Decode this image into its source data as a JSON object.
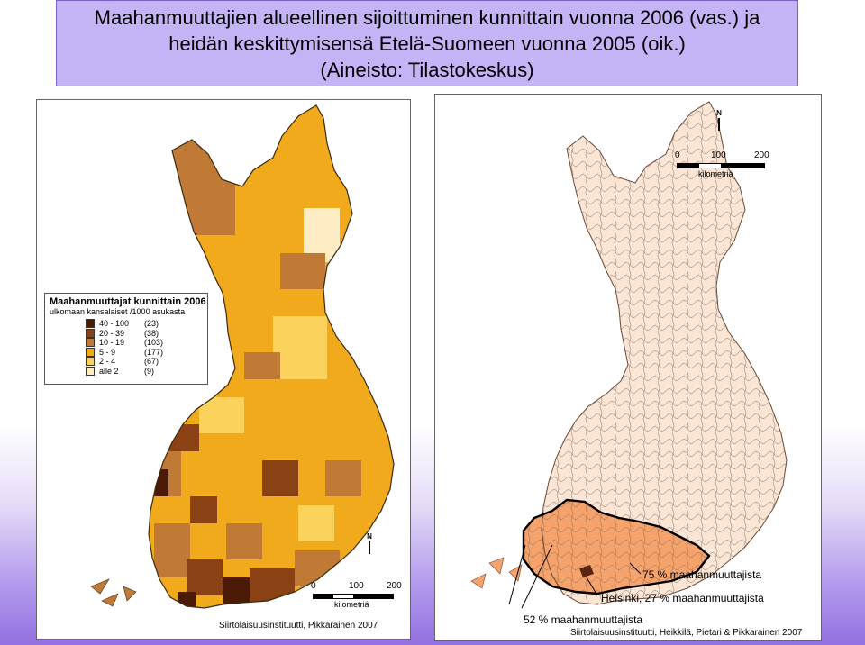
{
  "header": {
    "line1": "Maahanmuuttajien alueellinen sijoittuminen kunnittain vuonna 2006 (vas.) ja",
    "line2": "heidän keskittymisensä Etelä-Suomeen vuonna 2005 (oik.)",
    "line3": "(Aineisto: Tilastokeskus)"
  },
  "left_map": {
    "legend_title": "Maahanmuuttajat kunnittain 2006",
    "legend_subtitle": "ulkomaan kansalaiset /1000 asukasta",
    "classes": [
      {
        "range": "40 - 100",
        "count": "(23)",
        "color": "#4a1a06"
      },
      {
        "range": "20 - 39",
        "count": "(38)",
        "color": "#8a4214"
      },
      {
        "range": "10 - 19",
        "count": "(103)",
        "color": "#c07a36"
      },
      {
        "range": "5 - 9",
        "count": "(177)",
        "color": "#f0aa1c"
      },
      {
        "range": "2 - 4",
        "count": "(67)",
        "color": "#fbd35c"
      },
      {
        "range": "alle 2",
        "count": "(9)",
        "color": "#fdecc4"
      }
    ],
    "scale": {
      "t0": "0",
      "t1": "100",
      "t2": "200",
      "unit": "kilometriä"
    },
    "north": "N",
    "credit": "Siirtolaisuusinstituutti, Pikkarainen 2007"
  },
  "right_map": {
    "scale": {
      "t0": "0",
      "t1": "100",
      "t2": "200",
      "unit": "kilometriä"
    },
    "north": "N",
    "annotation_75": "75 % maahanmuuttajista",
    "annotation_helsinki": "Helsinki, 27 % maahanmuuttajista",
    "annotation_52": "52 % maahanmuuttajista",
    "credit": "Siirtolaisuusinstituutti, Heikkilä, Pietari & Pikkarainen 2007",
    "colors": {
      "base": "#fbe6d6",
      "south": "#f5a36a",
      "helsinki": "#5a2410"
    }
  }
}
